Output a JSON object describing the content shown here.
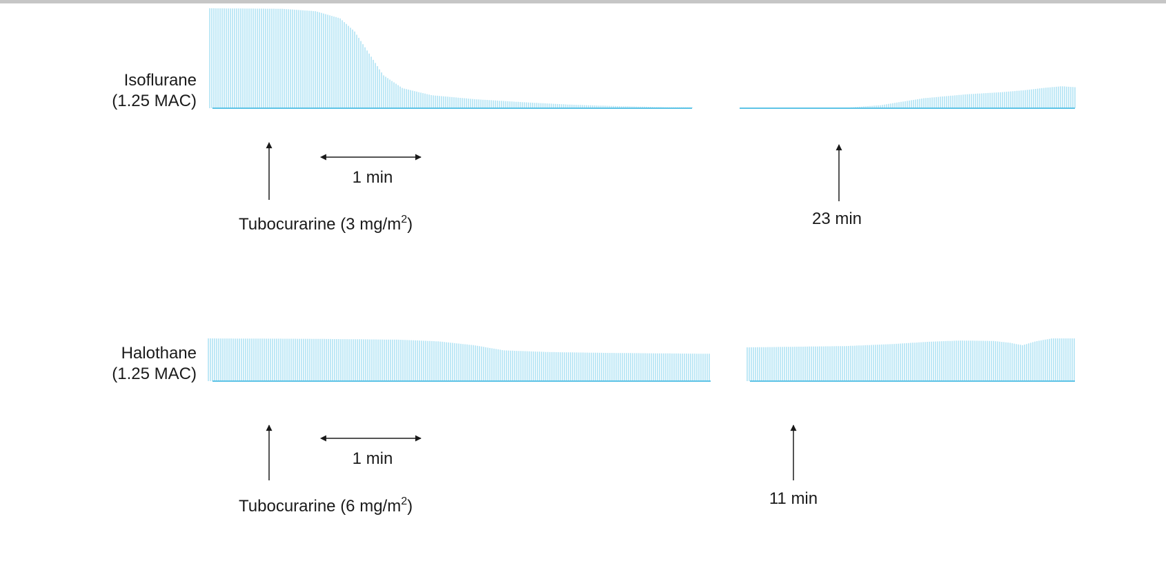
{
  "colors": {
    "trace": "#7fd1ec",
    "baseline": "#5cc3e6",
    "ink": "#1a1a1a",
    "top_rule": "#c6c6c6"
  },
  "panels": [
    {
      "id": "isoflurane",
      "agent": "Isoflurane",
      "dose": "(1.25 MAC)",
      "drug_prefix": "Tubocurarine (3 mg/m",
      "drug_sup": "2",
      "drug_suffix": ")",
      "scale_label": "1 min",
      "time_label": "23 min",
      "twitch_left": [
        [
          0,
          1.0
        ],
        [
          0.15,
          0.995
        ],
        [
          0.22,
          0.97
        ],
        [
          0.27,
          0.9
        ],
        [
          0.3,
          0.77
        ],
        [
          0.33,
          0.55
        ],
        [
          0.36,
          0.33
        ],
        [
          0.4,
          0.2
        ],
        [
          0.46,
          0.13
        ],
        [
          0.55,
          0.09
        ],
        [
          0.65,
          0.06
        ],
        [
          0.75,
          0.035
        ],
        [
          0.85,
          0.02
        ],
        [
          0.95,
          0.01
        ],
        [
          1.0,
          0.01
        ]
      ],
      "twitch_right": [
        [
          0,
          0.0
        ],
        [
          0.3,
          0.0
        ],
        [
          0.42,
          0.03
        ],
        [
          0.55,
          0.1
        ],
        [
          0.68,
          0.14
        ],
        [
          0.78,
          0.16
        ],
        [
          0.85,
          0.18
        ],
        [
          0.9,
          0.2
        ],
        [
          0.96,
          0.22
        ],
        [
          1.0,
          0.21
        ]
      ]
    },
    {
      "id": "halothane",
      "agent": "Halothane",
      "dose": "(1.25 MAC)",
      "drug_prefix": "Tubocurarine (6 mg/m",
      "drug_sup": "2",
      "drug_suffix": ")",
      "scale_label": "1 min",
      "time_label": "11 min",
      "twitch_left": [
        [
          0,
          1.0
        ],
        [
          0.2,
          0.99
        ],
        [
          0.38,
          0.97
        ],
        [
          0.46,
          0.93
        ],
        [
          0.53,
          0.84
        ],
        [
          0.59,
          0.72
        ],
        [
          0.68,
          0.68
        ],
        [
          0.8,
          0.66
        ],
        [
          1.0,
          0.64
        ]
      ],
      "twitch_right": [
        [
          0,
          0.79
        ],
        [
          0.3,
          0.82
        ],
        [
          0.45,
          0.87
        ],
        [
          0.55,
          0.92
        ],
        [
          0.65,
          0.95
        ],
        [
          0.75,
          0.94
        ],
        [
          0.8,
          0.9
        ],
        [
          0.84,
          0.84
        ],
        [
          0.88,
          0.93
        ],
        [
          0.93,
          1.0
        ],
        [
          1.0,
          1.0
        ]
      ]
    }
  ]
}
